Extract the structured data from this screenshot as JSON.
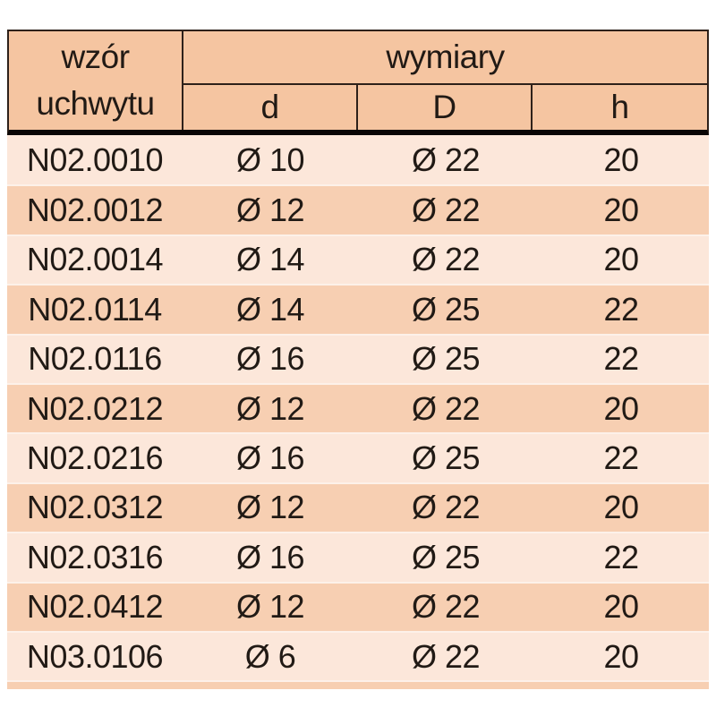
{
  "chart_data": {
    "type": "table",
    "header": {
      "row_label_line1": "wzór",
      "row_label_line2": "uchwytu",
      "group_label": "wymiary",
      "sub_labels": [
        "d",
        "D",
        "h"
      ]
    },
    "columns": [
      "wzór uchwytu",
      "d",
      "D",
      "h"
    ],
    "rows": [
      [
        "N02.0010",
        "Ø 10",
        "Ø 22",
        "20"
      ],
      [
        "N02.0012",
        "Ø 12",
        "Ø 22",
        "20"
      ],
      [
        "N02.0014",
        "Ø 14",
        "Ø 22",
        "20"
      ],
      [
        "N02.0114",
        "Ø 14",
        "Ø 25",
        "22"
      ],
      [
        "N02.0116",
        "Ø 16",
        "Ø 25",
        "22"
      ],
      [
        "N02.0212",
        "Ø 12",
        "Ø 22",
        "20"
      ],
      [
        "N02.0216",
        "Ø 16",
        "Ø 25",
        "22"
      ],
      [
        "N02.0312",
        "Ø 12",
        "Ø 22",
        "20"
      ],
      [
        "N02.0316",
        "Ø 16",
        "Ø 25",
        "22"
      ],
      [
        "N02.0412",
        "Ø 12",
        "Ø 22",
        "20"
      ],
      [
        "N03.0106",
        "Ø 6",
        "Ø 22",
        "20"
      ]
    ],
    "layout": {
      "banded_rows": true,
      "grid": "header-only-borders",
      "legend": "none"
    }
  },
  "colors": {
    "page-bg": "#ffffff",
    "header-bg": "#f5c5a1",
    "row-light": "#fce7da",
    "row-dark": "#f7cfb2",
    "row-separator": "#fdf1e9",
    "grid-line": "#2e211a",
    "thick-line": "#0a0504",
    "text": "#211a15"
  }
}
